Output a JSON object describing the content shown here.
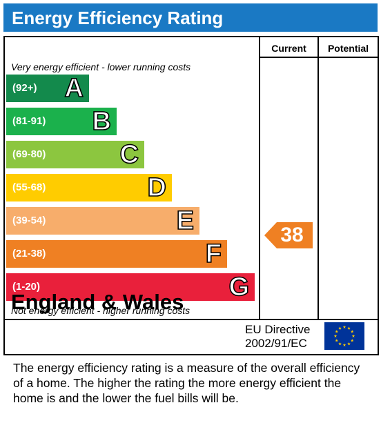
{
  "title": "Energy Efficiency Rating",
  "columns": {
    "current": "Current",
    "potential": "Potential"
  },
  "notes": {
    "top": "Very energy efficient - lower running costs",
    "bottom": "Not energy efficient - higher running costs"
  },
  "chart_data": {
    "type": "bar",
    "title": "Energy Efficiency Rating",
    "bands": [
      {
        "letter": "A",
        "range": "(92+)",
        "color": "#138a4c"
      },
      {
        "letter": "B",
        "range": "(81-91)",
        "color": "#1bb14c"
      },
      {
        "letter": "C",
        "range": "(69-80)",
        "color": "#8cc63f"
      },
      {
        "letter": "D",
        "range": "(55-68)",
        "color": "#ffcc00"
      },
      {
        "letter": "E",
        "range": "(39-54)",
        "color": "#f7ad6b"
      },
      {
        "letter": "F",
        "range": "(21-38)",
        "color": "#ef8023"
      },
      {
        "letter": "G",
        "range": "(1-20)",
        "color": "#e9203b"
      }
    ],
    "current": {
      "value": 38,
      "band": "F",
      "color": "#ef8023"
    },
    "potential": null
  },
  "footer": {
    "region": "England & Wales",
    "directive_line1": "EU Directive",
    "directive_line2": "2002/91/EC"
  },
  "description": "The energy efficiency rating is a measure of the overall efficiency of a home.  The higher the rating the more energy efficient the home is and the lower the fuel bills will be."
}
